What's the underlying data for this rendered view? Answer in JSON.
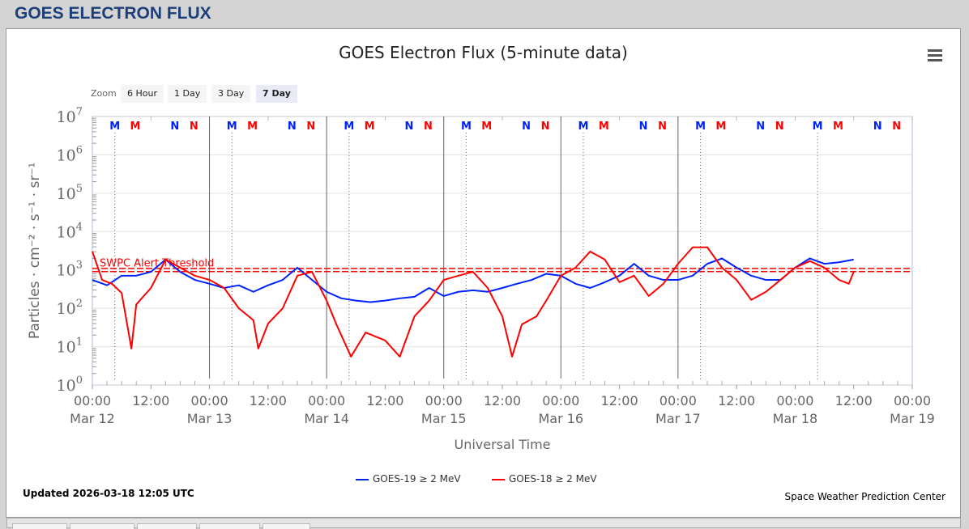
{
  "page_header": "GOES ELECTRON FLUX",
  "zoom": {
    "label": "Zoom",
    "buttons": [
      "6 Hour",
      "1 Day",
      "3 Day",
      "7 Day"
    ],
    "selected": "7 Day"
  },
  "footer": {
    "updated": "Updated 2026-03-18 12:05 UTC",
    "credit": "Space Weather Prediction Center"
  },
  "colors": {
    "goes19": "#0022ff",
    "goes18": "#ff0000"
  },
  "chart_data": {
    "type": "line",
    "title": "GOES Electron Flux (5-minute data)",
    "xlabel": "Universal Time",
    "ylabel": "Particles · cm⁻² · s⁻¹ · sr⁻¹",
    "yscale": "log",
    "ylim": [
      1,
      10000000
    ],
    "yticks": [
      "10⁰",
      "10¹",
      "10²",
      "10³",
      "10⁴",
      "10⁵",
      "10⁶",
      "10⁷"
    ],
    "xlim_hours": [
      0,
      168
    ],
    "xticks": [
      [
        "00:00",
        "Mar 12"
      ],
      [
        "12:00",
        ""
      ],
      [
        "00:00",
        "Mar 13"
      ],
      [
        "12:00",
        ""
      ],
      [
        "00:00",
        "Mar 14"
      ],
      [
        "12:00",
        ""
      ],
      [
        "00:00",
        "Mar 15"
      ],
      [
        "12:00",
        ""
      ],
      [
        "00:00",
        "Mar 16"
      ],
      [
        "12:00",
        ""
      ],
      [
        "00:00",
        "Mar 17"
      ],
      [
        "12:00",
        ""
      ],
      [
        "00:00",
        "Mar 18"
      ],
      [
        "12:00",
        ""
      ],
      [
        "00:00",
        "Mar 19"
      ]
    ],
    "threshold": {
      "label": "SWPC Alert Threshold",
      "value": 1000
    },
    "markers": [
      {
        "text": "M",
        "series": "goes19",
        "hour_of_day": 4.6
      },
      {
        "text": "M",
        "series": "goes18",
        "hour_of_day": 8.8
      },
      {
        "text": "N",
        "series": "goes19",
        "hour_of_day": 16.9
      },
      {
        "text": "N",
        "series": "goes18",
        "hour_of_day": 20.8
      }
    ],
    "series": [
      {
        "name": "GOES-19 ≥ 2 MeV",
        "color": "#0022ff",
        "hours": [
          0,
          3,
          6,
          9,
          12,
          15,
          18,
          21,
          24,
          27,
          30,
          33,
          36,
          39,
          42,
          45,
          48,
          51,
          54,
          57,
          60,
          63,
          66,
          69,
          72,
          75,
          78,
          81,
          84,
          87,
          90,
          93,
          96,
          99,
          102,
          105,
          108,
          111,
          114,
          117,
          120,
          123,
          126,
          129,
          132,
          135,
          138,
          141,
          144,
          147,
          150,
          153,
          156
        ],
        "log10": [
          2.74,
          2.6,
          2.85,
          2.85,
          2.95,
          3.27,
          2.95,
          2.74,
          2.64,
          2.53,
          2.6,
          2.43,
          2.6,
          2.74,
          3.06,
          2.74,
          2.43,
          2.26,
          2.2,
          2.16,
          2.2,
          2.26,
          2.3,
          2.53,
          2.32,
          2.43,
          2.47,
          2.43,
          2.53,
          2.64,
          2.74,
          2.9,
          2.85,
          2.64,
          2.53,
          2.68,
          2.85,
          3.16,
          2.85,
          2.74,
          2.74,
          2.85,
          3.16,
          3.3,
          3.06,
          2.85,
          2.74,
          2.74,
          3.06,
          3.3,
          3.16,
          3.2,
          3.27
        ]
      },
      {
        "name": "GOES-18 ≥ 2 MeV",
        "color": "#ff0000",
        "hours": [
          0,
          2,
          4,
          6,
          8,
          9,
          12,
          15,
          18,
          21,
          24,
          27,
          30,
          33,
          34,
          36,
          39,
          42,
          45,
          48,
          50,
          53,
          56,
          60,
          63,
          66,
          69,
          72,
          75,
          78,
          81,
          84,
          86,
          88,
          91,
          93,
          96,
          99,
          102,
          105,
          108,
          111,
          114,
          117,
          120,
          123,
          126,
          129,
          132,
          135,
          138,
          141,
          144,
          147,
          150,
          153,
          155,
          156
        ],
        "log10": [
          3.48,
          2.74,
          2.64,
          2.4,
          0.95,
          2.1,
          2.53,
          3.27,
          3.06,
          2.85,
          2.74,
          2.53,
          2.0,
          1.69,
          0.95,
          1.6,
          2.0,
          2.85,
          2.95,
          2.2,
          1.58,
          0.74,
          1.37,
          1.16,
          0.74,
          1.79,
          2.2,
          2.74,
          2.85,
          2.95,
          2.53,
          1.79,
          0.74,
          1.58,
          1.79,
          2.2,
          2.85,
          3.06,
          3.48,
          3.27,
          2.68,
          2.85,
          2.32,
          2.64,
          3.16,
          3.59,
          3.59,
          3.06,
          2.74,
          2.22,
          2.43,
          2.74,
          3.06,
          3.23,
          3.06,
          2.74,
          2.64,
          2.95
        ]
      }
    ]
  }
}
